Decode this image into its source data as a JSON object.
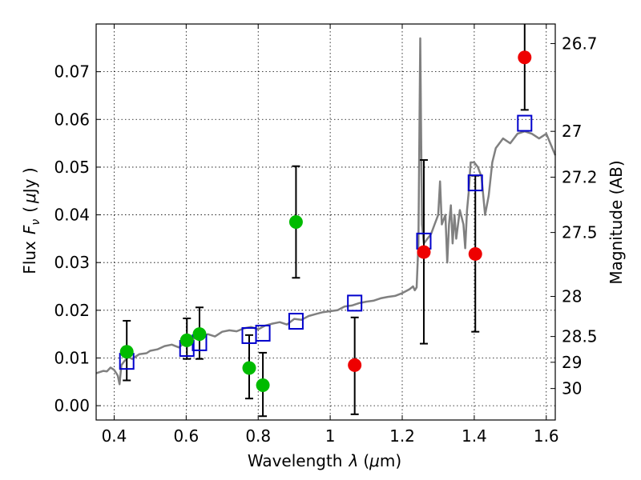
{
  "chart_data": {
    "type": "scatter",
    "xlabel_text": "Wavelength",
    "xlabel_symbol": "λ",
    "xlabel_unit_open": "(",
    "xlabel_unit_mu": "μ",
    "xlabel_unit_rest": "m)",
    "ylabel_text": "Flux",
    "ylabel_symbol": "F",
    "ylabel_sub": "ν",
    "ylabel_unit_open": "(",
    "ylabel_unit_mu": "μ",
    "ylabel_unit_rest": "Jy )",
    "y2label": "Magnitude (AB)",
    "xlim": [
      0.35,
      1.625
    ],
    "ylim": [
      -0.003,
      0.08
    ],
    "grid": true,
    "x_ticks": [
      0.4,
      0.6,
      0.8,
      1.0,
      1.2,
      1.4,
      1.6
    ],
    "x_tick_labels": [
      "0.4",
      "0.6",
      "0.8",
      "1",
      "1.2",
      "1.4",
      "1.6"
    ],
    "y_ticks": [
      0.0,
      0.01,
      0.02,
      0.03,
      0.04,
      0.05,
      0.06,
      0.07
    ],
    "y_tick_labels": [
      "0.00",
      "0.01",
      "0.02",
      "0.03",
      "0.04",
      "0.05",
      "0.06",
      "0.07"
    ],
    "mag_ticks": [
      {
        "label": "26.7",
        "flux": 0.0759
      },
      {
        "label": "27",
        "flux": 0.0575
      },
      {
        "label": "27.2",
        "flux": 0.0479
      },
      {
        "label": "27.5",
        "flux": 0.0363
      },
      {
        "label": "28",
        "flux": 0.0229
      },
      {
        "label": "28.5",
        "flux": 0.0145
      },
      {
        "label": "29",
        "flux": 0.0091
      },
      {
        "label": "30",
        "flux": 0.0036
      }
    ],
    "model_spectrum": {
      "color": "#808080",
      "x": [
        0.35,
        0.37,
        0.38,
        0.39,
        0.4,
        0.41,
        0.415,
        0.42,
        0.43,
        0.44,
        0.45,
        0.47,
        0.49,
        0.5,
        0.52,
        0.54,
        0.56,
        0.58,
        0.6,
        0.62,
        0.64,
        0.66,
        0.68,
        0.7,
        0.72,
        0.74,
        0.76,
        0.78,
        0.8,
        0.82,
        0.84,
        0.86,
        0.88,
        0.9,
        0.92,
        0.94,
        0.96,
        0.98,
        1.0,
        1.02,
        1.04,
        1.06,
        1.08,
        1.1,
        1.12,
        1.14,
        1.16,
        1.18,
        1.2,
        1.22,
        1.23,
        1.235,
        1.24,
        1.245,
        1.25,
        1.252,
        1.255,
        1.26,
        1.27,
        1.28,
        1.29,
        1.3,
        1.305,
        1.31,
        1.32,
        1.325,
        1.33,
        1.335,
        1.34,
        1.345,
        1.35,
        1.36,
        1.37,
        1.375,
        1.38,
        1.385,
        1.39,
        1.4,
        1.41,
        1.42,
        1.43,
        1.44,
        1.45,
        1.46,
        1.47,
        1.48,
        1.5,
        1.52,
        1.54,
        1.56,
        1.58,
        1.6,
        1.625
      ],
      "y": [
        0.0068,
        0.0073,
        0.0072,
        0.008,
        0.0075,
        0.0063,
        0.0045,
        0.0085,
        0.0095,
        0.0102,
        0.0098,
        0.0108,
        0.011,
        0.0115,
        0.0118,
        0.0125,
        0.0128,
        0.0122,
        0.0135,
        0.014,
        0.0145,
        0.015,
        0.0145,
        0.0155,
        0.0158,
        0.0156,
        0.0162,
        0.0165,
        0.016,
        0.0168,
        0.0172,
        0.0175,
        0.017,
        0.0182,
        0.018,
        0.0188,
        0.0192,
        0.0196,
        0.0198,
        0.02,
        0.0208,
        0.021,
        0.0215,
        0.0218,
        0.022,
        0.0225,
        0.0228,
        0.023,
        0.0236,
        0.0244,
        0.025,
        0.0242,
        0.0248,
        0.034,
        0.077,
        0.06,
        0.038,
        0.034,
        0.035,
        0.036,
        0.038,
        0.04,
        0.047,
        0.038,
        0.04,
        0.03,
        0.038,
        0.042,
        0.034,
        0.04,
        0.035,
        0.041,
        0.038,
        0.033,
        0.041,
        0.045,
        0.051,
        0.051,
        0.05,
        0.048,
        0.04,
        0.044,
        0.051,
        0.054,
        0.055,
        0.056,
        0.055,
        0.057,
        0.0575,
        0.057,
        0.056,
        0.057,
        0.0525
      ]
    },
    "model_bands": {
      "color": "#0000cc",
      "points": [
        {
          "x": 0.435,
          "y": 0.0093
        },
        {
          "x": 0.602,
          "y": 0.012
        },
        {
          "x": 0.637,
          "y": 0.0132
        },
        {
          "x": 0.775,
          "y": 0.0147
        },
        {
          "x": 0.813,
          "y": 0.0152
        },
        {
          "x": 0.905,
          "y": 0.0177
        },
        {
          "x": 1.068,
          "y": 0.0215
        },
        {
          "x": 1.26,
          "y": 0.0345
        },
        {
          "x": 1.403,
          "y": 0.0467
        },
        {
          "x": 1.54,
          "y": 0.0592
        }
      ]
    },
    "detections": {
      "color": "#00bb00",
      "points": [
        {
          "x": 0.435,
          "y": 0.0113,
          "err_low": 0.0053,
          "err_high": 0.0178
        },
        {
          "x": 0.602,
          "y": 0.0137,
          "err_low": 0.0098,
          "err_high": 0.0183
        },
        {
          "x": 0.637,
          "y": 0.015,
          "err_low": 0.0098,
          "err_high": 0.0206
        },
        {
          "x": 0.775,
          "y": 0.0079,
          "err_low": 0.0015,
          "err_high": 0.0148
        },
        {
          "x": 0.813,
          "y": 0.0043,
          "err_low": -0.0022,
          "err_high": 0.0111
        },
        {
          "x": 0.905,
          "y": 0.0385,
          "err_low": 0.0268,
          "err_high": 0.0502
        }
      ]
    },
    "nir_points": {
      "color": "#ee0000",
      "points": [
        {
          "x": 1.068,
          "y": 0.0085,
          "err_low": -0.0018,
          "err_high": 0.0185
        },
        {
          "x": 1.26,
          "y": 0.0322,
          "err_low": 0.013,
          "err_high": 0.0515
        },
        {
          "x": 1.403,
          "y": 0.0318,
          "err_low": 0.0155,
          "err_high": 0.0482
        },
        {
          "x": 1.54,
          "y": 0.073,
          "err_low": 0.062,
          "err_high": 0.08
        }
      ]
    }
  }
}
